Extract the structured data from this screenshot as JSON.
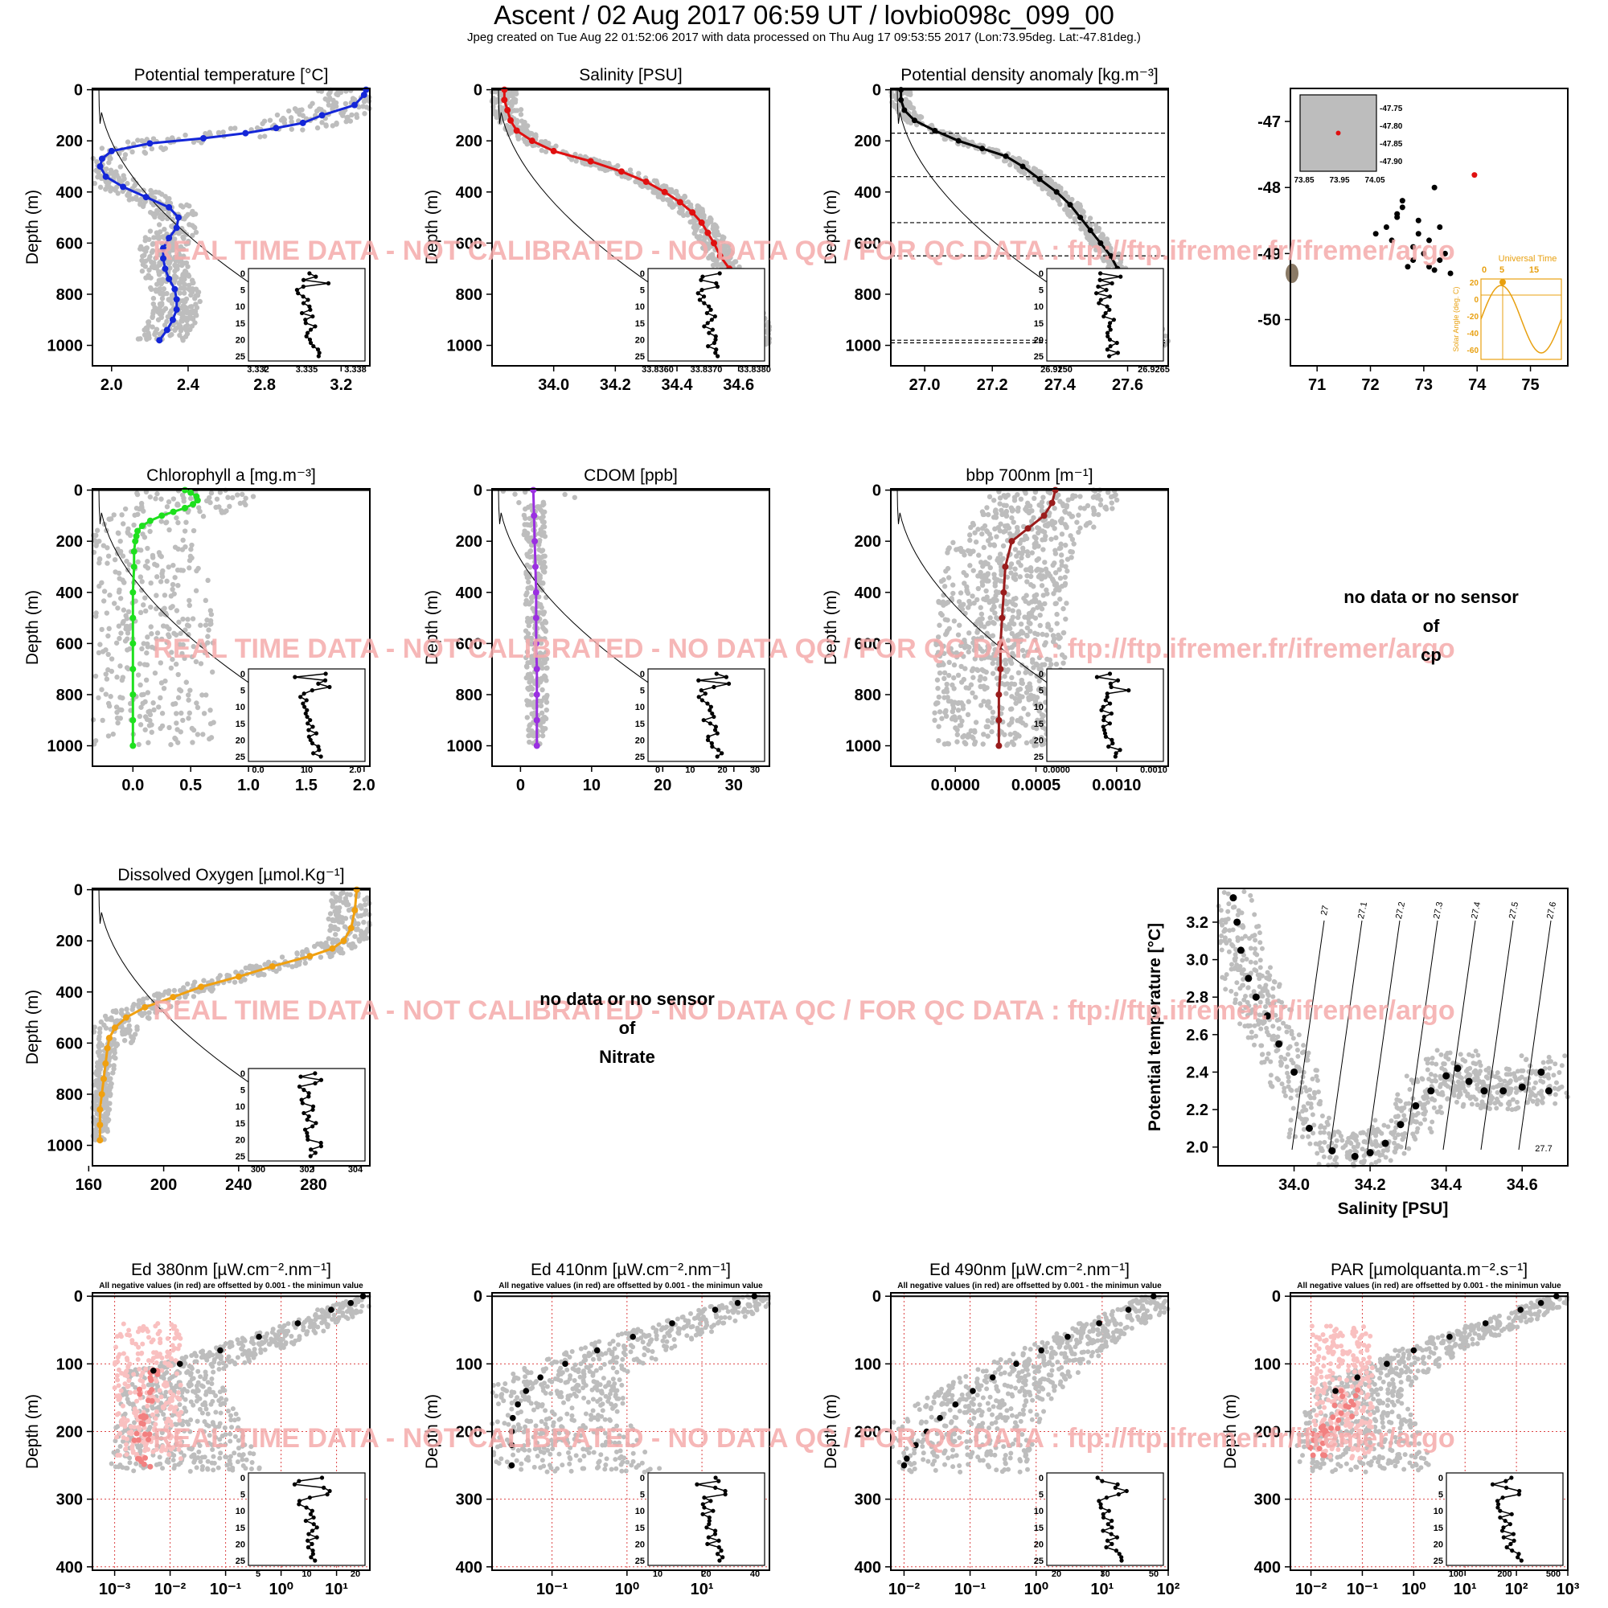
{
  "header": {
    "title": "Ascent / 02 Aug 2017 06:59 UT /  lovbio098c_099_00",
    "subtitle": "Jpeg created on Tue Aug 22 01:52:06 2017 with data processed on Thu Aug 17 09:53:55 2017 (Lon:73.95deg. Lat:-47.81deg.)"
  },
  "watermark": "REAL TIME DATA - NOT CALIBRATED - NO DATA QC  /  FOR QC DATA : ftp://ftp.ifremer.fr/ifremer/argo",
  "colors": {
    "history": "#bdbdbd",
    "watermark": "#f4aaaa",
    "temp": "#1426d8",
    "sal": "#e01010",
    "dens": "#000000",
    "chla": "#1ee01e",
    "cdom": "#9a30e0",
    "bbp": "#9a1c1c",
    "oxy": "#f0a010",
    "negative": "#f28080",
    "sun": "#e8a010"
  },
  "no_data": {
    "cp": [
      "no data or no sensor",
      "of",
      "cp"
    ],
    "nitrate": [
      "no data or no sensor",
      "of",
      "Nitrate"
    ]
  },
  "chart_data": [
    {
      "id": "temp",
      "type": "scatter",
      "title": "Potential temperature [°C]",
      "ylabel": "Depth (m)",
      "xlim": [
        1.9,
        3.35
      ],
      "ylim": [
        1080,
        -5
      ],
      "xticks": [
        "2.0",
        "2.4",
        "2.8",
        "3.2"
      ],
      "yticks": [
        "0",
        "200",
        "400",
        "600",
        "800",
        "1000"
      ],
      "profile": {
        "depth": [
          0,
          20,
          60,
          100,
          130,
          150,
          170,
          190,
          210,
          240,
          270,
          300,
          340,
          380,
          420,
          460,
          500,
          540,
          580,
          620,
          660,
          700,
          740,
          780,
          820,
          860,
          900,
          940,
          980
        ],
        "value": [
          3.33,
          3.32,
          3.27,
          3.1,
          3.0,
          2.86,
          2.7,
          2.48,
          2.2,
          2.0,
          1.95,
          1.94,
          1.97,
          2.06,
          2.18,
          2.3,
          2.35,
          2.34,
          2.3,
          2.27,
          2.27,
          2.28,
          2.3,
          2.33,
          2.34,
          2.34,
          2.32,
          2.29,
          2.25
        ]
      },
      "inset": {
        "xticks": [
          "3.332",
          "3.335",
          "3.338"
        ],
        "yticks": [
          "0",
          "5",
          "10",
          "15",
          "20",
          "25"
        ]
      }
    },
    {
      "id": "sal",
      "type": "scatter",
      "title": "Salinity [PSU]",
      "ylabel": "Depth (m)",
      "xlim": [
        33.8,
        34.7
      ],
      "ylim": [
        1080,
        -5
      ],
      "xticks": [
        "34.0",
        "34.2",
        "34.4",
        "34.6"
      ],
      "yticks": [
        "0",
        "200",
        "400",
        "600",
        "800",
        "1000"
      ],
      "profile": {
        "depth": [
          0,
          40,
          80,
          120,
          160,
          200,
          240,
          280,
          320,
          360,
          400,
          440,
          480,
          520,
          560,
          600,
          650,
          700,
          750,
          800,
          850,
          900,
          950,
          1000
        ],
        "value": [
          33.84,
          33.84,
          33.85,
          33.86,
          33.88,
          33.93,
          34.0,
          34.12,
          34.22,
          34.3,
          34.36,
          34.41,
          34.45,
          34.48,
          34.5,
          34.52,
          34.54,
          34.57,
          34.59,
          34.61,
          34.63,
          34.65,
          34.66,
          34.67
        ]
      },
      "inset": {
        "xticks": [
          "33.8360",
          "33.8370",
          "33.8380"
        ],
        "yticks": [
          "0",
          "5",
          "10",
          "15",
          "20",
          "25"
        ]
      }
    },
    {
      "id": "dens",
      "type": "scatter",
      "title": "Potential density anomaly [kg.m⁻³]",
      "ylabel": "Depth (m)",
      "xlim": [
        26.9,
        27.72
      ],
      "ylim": [
        1080,
        -5
      ],
      "xticks": [
        "27.0",
        "27.2",
        "27.4",
        "27.6"
      ],
      "yticks": [
        "0",
        "200",
        "400",
        "600",
        "800",
        "1000"
      ],
      "profile": {
        "depth": [
          0,
          40,
          80,
          120,
          160,
          200,
          230,
          260,
          300,
          350,
          400,
          450,
          500,
          550,
          600,
          650,
          700,
          750,
          800,
          850,
          900,
          950,
          1000
        ],
        "value": [
          26.93,
          26.93,
          26.94,
          26.97,
          27.03,
          27.1,
          27.17,
          27.24,
          27.29,
          27.34,
          27.39,
          27.43,
          27.46,
          27.49,
          27.52,
          27.55,
          27.57,
          27.6,
          27.62,
          27.64,
          27.66,
          27.68,
          27.7
        ]
      },
      "mld_lines": [
        170,
        340,
        520,
        650,
        980,
        990
      ],
      "inset": {
        "xticks": [
          "26.9250",
          "26.9265"
        ],
        "yticks": [
          "0",
          "5",
          "10",
          "15",
          "20",
          "25"
        ]
      }
    },
    {
      "id": "map",
      "type": "scatter",
      "xlim": [
        70.5,
        75.7
      ],
      "ylim": [
        -50.7,
        -46.5
      ],
      "xticks": [
        "71",
        "72",
        "73",
        "74",
        "75"
      ],
      "yticks": [
        "-47",
        "-48",
        "-49",
        "-50"
      ],
      "float_pos": {
        "x": 73.95,
        "y": -47.81
      },
      "track": {
        "x": [
          72.1,
          72.3,
          72.5,
          72.6,
          72.4,
          72.8,
          73.0,
          73.1,
          72.8,
          72.6,
          73.2,
          73.3,
          73.1,
          72.9,
          72.7,
          73.2,
          73.4,
          73.5,
          73.3,
          72.5,
          72.9
        ],
        "y": [
          -48.7,
          -48.6,
          -48.4,
          -48.2,
          -48.8,
          -48.9,
          -49.0,
          -49.2,
          -49.1,
          -48.3,
          -48.0,
          -48.6,
          -48.8,
          -48.5,
          -49.2,
          -49.25,
          -49.0,
          -49.3,
          -49.1,
          -48.45,
          -48.7
        ]
      },
      "inset": {
        "xticks": [
          "73.85",
          "73.95",
          "74.05"
        ],
        "yticks": [
          "-47.75",
          "-47.80",
          "-47.85",
          "-47.90"
        ]
      },
      "sun": {
        "title": "Universal Time",
        "xticks": [
          "0",
          "5",
          "15"
        ],
        "ylabel": "Solar Angle (deg. C)",
        "yticks": [
          "20",
          "0",
          "-20",
          "-40",
          "-60"
        ]
      }
    },
    {
      "id": "chla",
      "type": "scatter",
      "title": "Chlorophyll a [mg.m⁻³]",
      "ylabel": "Depth (m)",
      "xlim": [
        -0.35,
        2.05
      ],
      "ylim": [
        1080,
        -5
      ],
      "xticks": [
        "0.0",
        "0.5",
        "1.0",
        "1.5",
        "2.0"
      ],
      "yticks": [
        "0",
        "200",
        "400",
        "600",
        "800",
        "1000"
      ],
      "profile": {
        "depth": [
          0,
          10,
          25,
          40,
          55,
          70,
          85,
          100,
          120,
          140,
          160,
          180,
          200,
          240,
          300,
          400,
          500,
          600,
          700,
          800,
          900,
          1000
        ],
        "value": [
          0.45,
          0.5,
          0.55,
          0.56,
          0.52,
          0.45,
          0.35,
          0.25,
          0.15,
          0.08,
          0.04,
          0.03,
          0.02,
          0.01,
          0.01,
          0.0,
          0.0,
          0.0,
          0.0,
          0.0,
          0.0,
          0.0
        ]
      },
      "inset": {
        "xticks": [
          "0.0",
          "1.0",
          "2.0"
        ],
        "yticks": [
          "0",
          "5",
          "10",
          "15",
          "20",
          "25"
        ]
      }
    },
    {
      "id": "cdom",
      "type": "scatter",
      "title": "CDOM [ppb]",
      "ylabel": "Depth (m)",
      "xlim": [
        -4,
        35
      ],
      "ylim": [
        1080,
        -5
      ],
      "xticks": [
        "0",
        "10",
        "20",
        "30"
      ],
      "yticks": [
        "0",
        "200",
        "400",
        "600",
        "800",
        "1000"
      ],
      "profile": {
        "depth": [
          0,
          100,
          200,
          300,
          400,
          500,
          600,
          700,
          800,
          900,
          1000
        ],
        "value": [
          1.8,
          1.9,
          2.0,
          2.1,
          2.2,
          2.2,
          2.2,
          2.3,
          2.3,
          2.3,
          2.3
        ]
      },
      "inset": {
        "xticks": [
          "0",
          "10",
          "20",
          "30"
        ],
        "yticks": [
          "0",
          "5",
          "10",
          "15",
          "20",
          "25"
        ]
      }
    },
    {
      "id": "bbp",
      "type": "scatter",
      "title": "bbp 700nm [m⁻¹]",
      "ylabel": "Depth (m)",
      "xlim": [
        -0.0004,
        0.00132
      ],
      "ylim": [
        1080,
        -5
      ],
      "xticks": [
        "0.0000",
        "0.0005",
        "0.0010"
      ],
      "yticks": [
        "0",
        "200",
        "400",
        "600",
        "800",
        "1000"
      ],
      "profile": {
        "depth": [
          0,
          50,
          100,
          150,
          200,
          300,
          400,
          500,
          600,
          700,
          800,
          900,
          1000
        ],
        "value": [
          0.00062,
          0.0006,
          0.00055,
          0.00045,
          0.00035,
          0.00031,
          0.0003,
          0.00029,
          0.00028,
          0.00028,
          0.00027,
          0.00027,
          0.00027
        ]
      },
      "inset": {
        "xticks": [
          "0.0000",
          "0.0010"
        ],
        "yticks": [
          "0",
          "5",
          "10",
          "15",
          "20",
          "25"
        ]
      }
    },
    {
      "id": "oxy",
      "type": "scatter",
      "title": "Dissolved Oxygen [µmol.Kg⁻¹]",
      "ylabel": "Depth (m)",
      "xlim": [
        162,
        310
      ],
      "ylim": [
        1080,
        -5
      ],
      "xticks": [
        "160",
        "200",
        "240",
        "280"
      ],
      "yticks": [
        "0",
        "200",
        "400",
        "600",
        "800",
        "1000"
      ],
      "profile": {
        "depth": [
          0,
          80,
          150,
          200,
          230,
          260,
          300,
          340,
          380,
          420,
          460,
          500,
          540,
          580,
          620,
          680,
          740,
          800,
          860,
          920,
          980
        ],
        "value": [
          303,
          302,
          300,
          296,
          290,
          278,
          258,
          240,
          220,
          205,
          190,
          180,
          174,
          171,
          170,
          169,
          168,
          167,
          166,
          166,
          166
        ]
      },
      "inset": {
        "xticks": [
          "300",
          "302",
          "304"
        ],
        "yticks": [
          "0",
          "5",
          "10",
          "15",
          "20",
          "25"
        ]
      }
    },
    {
      "id": "ts",
      "type": "scatter",
      "xlabel": "Salinity [PSU]",
      "ylabel": "Potential temperature [°C]",
      "xlim": [
        33.8,
        34.72
      ],
      "ylim": [
        1.9,
        3.38
      ],
      "xticks": [
        "34.0",
        "34.2",
        "34.4",
        "34.6"
      ],
      "yticks": [
        "2.0",
        "2.2",
        "2.4",
        "2.6",
        "2.8",
        "3.0",
        "3.2"
      ],
      "isopycnals": [
        "27",
        "27.1",
        "27.2",
        "27.3",
        "27.4",
        "27.5",
        "27.6",
        "27.7"
      ],
      "profile": {
        "x": [
          33.84,
          33.85,
          33.86,
          33.88,
          33.9,
          33.93,
          33.96,
          34.0,
          34.04,
          34.1,
          34.16,
          34.2,
          34.24,
          34.28,
          34.32,
          34.36,
          34.4,
          34.43,
          34.46,
          34.5,
          34.55,
          34.6,
          34.65,
          34.67
        ],
        "y": [
          3.33,
          3.2,
          3.05,
          2.9,
          2.8,
          2.7,
          2.55,
          2.4,
          2.1,
          1.98,
          1.95,
          1.97,
          2.02,
          2.12,
          2.22,
          2.3,
          2.38,
          2.42,
          2.35,
          2.3,
          2.3,
          2.32,
          2.4,
          2.3
        ]
      }
    },
    {
      "id": "ed380",
      "type": "scatter",
      "title": "Ed 380nm [µW.cm⁻².nm⁻¹]",
      "subtitle": "All negative values (in red) are offsetted by 0.001 - the minimun value",
      "ylabel": "Depth (m)",
      "xlog": [
        -3.4,
        1.6
      ],
      "ylim": [
        405,
        -5
      ],
      "xticks": [
        "10⁻³",
        "10⁻²",
        "10⁻¹",
        "10⁰",
        "10¹"
      ],
      "yticks": [
        "0",
        "100",
        "200",
        "300",
        "400"
      ],
      "profile": {
        "depth": [
          0,
          10,
          20,
          40,
          60,
          80,
          100,
          110
        ],
        "value": [
          30,
          18,
          8,
          2,
          0.4,
          0.08,
          0.015,
          0.005
        ]
      },
      "negative": {
        "depth": [
          120,
          150,
          180,
          210,
          240
        ],
        "value": [
          0.006,
          0.004,
          0.003,
          0.003,
          0.003
        ]
      },
      "inset": {
        "xticks": [
          "5",
          "10",
          "20"
        ],
        "yticks": [
          "0",
          "5",
          "10",
          "15",
          "20",
          "25"
        ]
      }
    },
    {
      "id": "ed410",
      "type": "scatter",
      "title": "Ed 410nm [µW.cm⁻².nm⁻¹]",
      "subtitle": "All negative values (in red) are offsetted by 0.001 - the minimun value",
      "ylabel": "Depth (m)",
      "xlog": [
        -1.8,
        1.9
      ],
      "ylim": [
        405,
        -5
      ],
      "xticks": [
        "10⁻¹",
        "10⁰",
        "10¹"
      ],
      "yticks": [
        "0",
        "100",
        "200",
        "300",
        "400"
      ],
      "profile": {
        "depth": [
          0,
          10,
          20,
          40,
          60,
          80,
          100,
          120,
          140,
          160,
          180,
          200,
          220,
          250
        ],
        "value": [
          50,
          30,
          15,
          4,
          1.2,
          0.4,
          0.15,
          0.07,
          0.045,
          0.035,
          0.03,
          0.029,
          0.029,
          0.029
        ]
      },
      "inset": {
        "xticks": [
          "10",
          "20",
          "40"
        ],
        "yticks": [
          "0",
          "5",
          "10",
          "15",
          "20",
          "25"
        ]
      }
    },
    {
      "id": "ed490",
      "type": "scatter",
      "title": "Ed 490nm [µW.cm⁻².nm⁻¹]",
      "subtitle": "All negative values (in red) are offsetted by 0.001 - the minimun value",
      "ylabel": "Depth (m)",
      "xlog": [
        -2.2,
        2.0
      ],
      "ylim": [
        405,
        -5
      ],
      "xticks": [
        "10⁻²",
        "10⁻¹",
        "10⁰",
        "10¹",
        "10²"
      ],
      "yticks": [
        "0",
        "100",
        "200",
        "300",
        "400"
      ],
      "profile": {
        "depth": [
          0,
          20,
          40,
          60,
          80,
          100,
          120,
          140,
          160,
          180,
          200,
          220,
          240,
          250
        ],
        "value": [
          60,
          25,
          9,
          3,
          1.2,
          0.5,
          0.22,
          0.11,
          0.06,
          0.035,
          0.022,
          0.015,
          0.011,
          0.01
        ]
      },
      "inset": {
        "xticks": [
          "20",
          "30",
          "50"
        ],
        "yticks": [
          "0",
          "5",
          "10",
          "15",
          "20",
          "25"
        ]
      }
    },
    {
      "id": "par",
      "type": "scatter",
      "title": "PAR [µmolquanta.m⁻².s⁻¹]",
      "subtitle": "All negative values (in red) are offsetted by 0.001 - the minimun value",
      "ylabel": "Depth (m)",
      "xlog": [
        -2.4,
        3.0
      ],
      "ylim": [
        405,
        -5
      ],
      "xticks": [
        "10⁻²",
        "10⁻¹",
        "10⁰",
        "10¹",
        "10²",
        "10³"
      ],
      "yticks": [
        "0",
        "100",
        "200",
        "300",
        "400"
      ],
      "profile": {
        "depth": [
          0,
          10,
          20,
          40,
          60,
          80,
          100,
          120,
          140
        ],
        "value": [
          600,
          300,
          120,
          25,
          5,
          1,
          0.3,
          0.08,
          0.03
        ]
      },
      "negative": {
        "depth": [
          150,
          170,
          190,
          210,
          230
        ],
        "value": [
          0.06,
          0.04,
          0.025,
          0.015,
          0.012
        ]
      },
      "inset": {
        "xticks": [
          "100",
          "200",
          "500"
        ],
        "yticks": [
          "0",
          "5",
          "10",
          "15",
          "20",
          "25"
        ]
      }
    }
  ]
}
